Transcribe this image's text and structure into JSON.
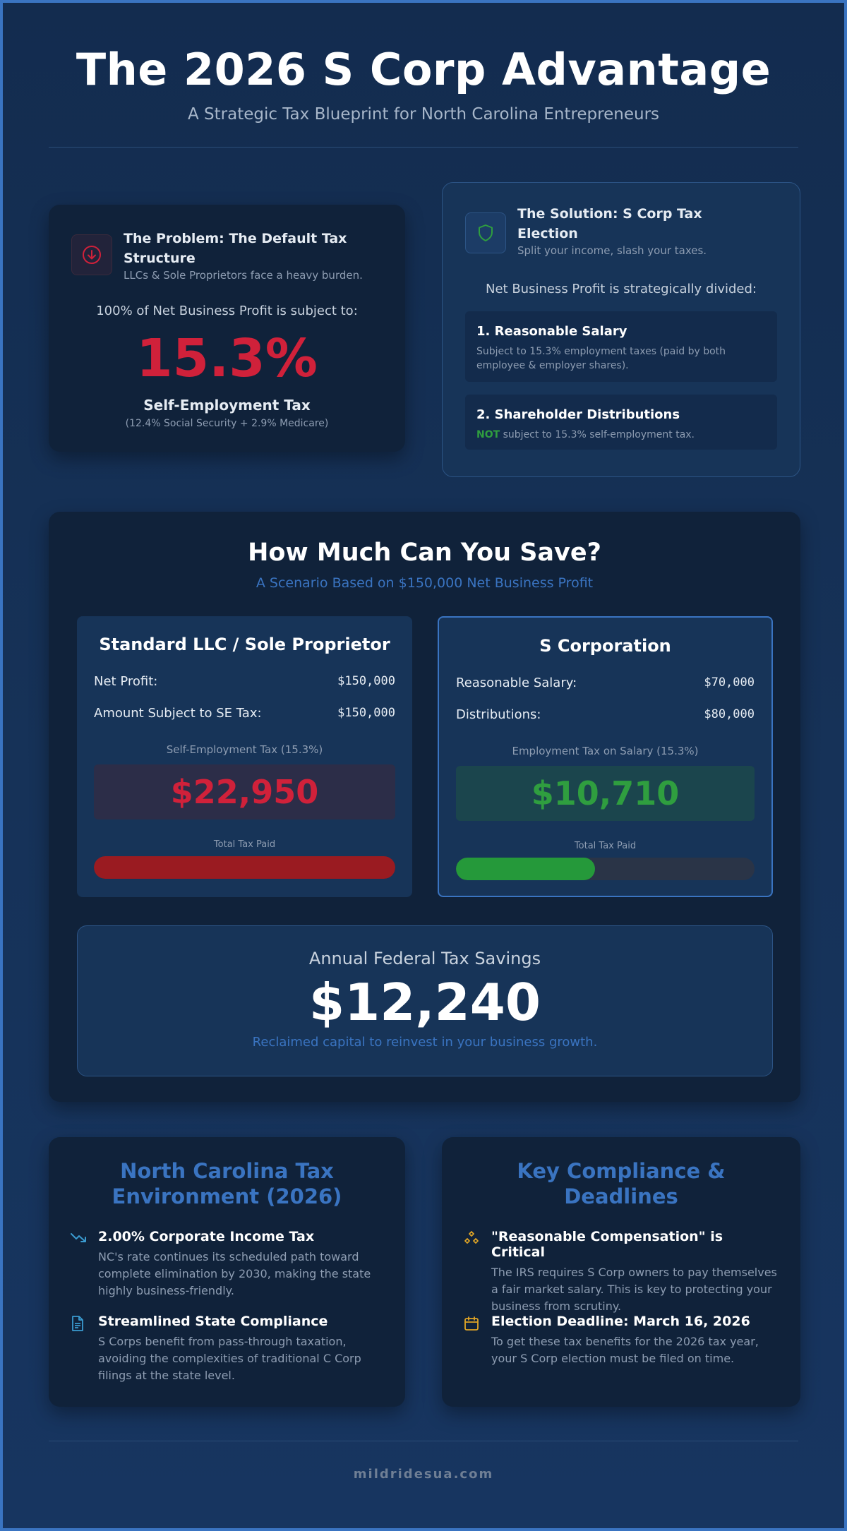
{
  "header": {
    "title": "The 2026 S Corp Advantage",
    "subtitle": "A Strategic Tax Blueprint for North Carolina Entrepreneurs"
  },
  "problem": {
    "icon": "arrow-down-circle-icon",
    "title_line1": "The Problem: The Default Tax",
    "title_line2": "Structure",
    "subtitle": "LLCs & Sole Proprietors face a heavy burden.",
    "intro": "100% of Net Business Profit is subject to:",
    "rate": "15.3%",
    "tax_name": "Self-Employment Tax",
    "tax_detail": "(12.4% Social Security + 2.9% Medicare)"
  },
  "solution": {
    "icon": "shield-icon",
    "title_line1": "The Solution: S Corp Tax",
    "title_line2": "Election",
    "subtitle": "Split your income, slash your taxes.",
    "intro": "Net Business Profit is strategically divided:",
    "items": [
      {
        "title": "1. Reasonable Salary",
        "desc": "Subject to 15.3% employment taxes (paid by both employee & employer shares)."
      },
      {
        "title": "2. Shareholder Distributions",
        "desc_highlight": "NOT",
        "desc": " subject to 15.3% self-employment tax."
      }
    ]
  },
  "savings": {
    "title": "How Much Can You Save?",
    "subtitle": "A Scenario Based on $150,000 Net Business Profit",
    "llc": {
      "title": "Standard LLC / Sole Proprietor",
      "rows": [
        {
          "label": "Net Profit:",
          "value": "$150,000"
        },
        {
          "label": "Amount Subject to SE Tax:",
          "value": "$150,000"
        }
      ],
      "tax_label": "Self-Employment Tax (15.3%)",
      "tax_value": "$22,950",
      "bar_label": "Total Tax Paid",
      "bar_fraction": 1.0
    },
    "scorp": {
      "title": "S Corporation",
      "rows": [
        {
          "label": "Reasonable Salary:",
          "value": "$70,000"
        },
        {
          "label": "Distributions:",
          "value": "$80,000"
        }
      ],
      "tax_label": "Employment Tax on Salary (15.3%)",
      "tax_value": "$10,710",
      "bar_label": "Total Tax Paid",
      "bar_fraction": 0.4667
    },
    "total": {
      "label": "Annual Federal Tax Savings",
      "value": "$12,240",
      "note": "Reclaimed capital to reinvest in your business growth."
    }
  },
  "nc": {
    "title_line1": "North Carolina Tax",
    "title_line2": "Environment (2026)",
    "items": [
      {
        "icon": "trending-down-icon",
        "title": "2.00% Corporate Income Tax",
        "desc": "NC's rate continues its scheduled path toward complete elimination by 2030, making the state highly business-friendly."
      },
      {
        "icon": "document-icon",
        "title": "Streamlined State Compliance",
        "desc": "S Corps benefit from pass-through taxation, avoiding the complexities of traditional C Corp filings at the state level."
      }
    ]
  },
  "compliance": {
    "title_line1": "Key Compliance &",
    "title_line2": "Deadlines",
    "items": [
      {
        "icon": "diamonds-icon",
        "title": "\"Reasonable Compensation\" is Critical",
        "desc": "The IRS requires S Corp owners to pay themselves a fair market salary. This is key to protecting your business from scrutiny."
      },
      {
        "icon": "calendar-icon",
        "title": "Election Deadline: March 16, 2026",
        "desc": "To get these tax benefits for the 2026 tax year, your S Corp election must be filed on time."
      }
    ]
  },
  "footer": {
    "site": "mildridesua.com"
  },
  "colors": {
    "red": "#d0213a",
    "green": "#2f9e3f",
    "accent": "#3a74c1"
  }
}
